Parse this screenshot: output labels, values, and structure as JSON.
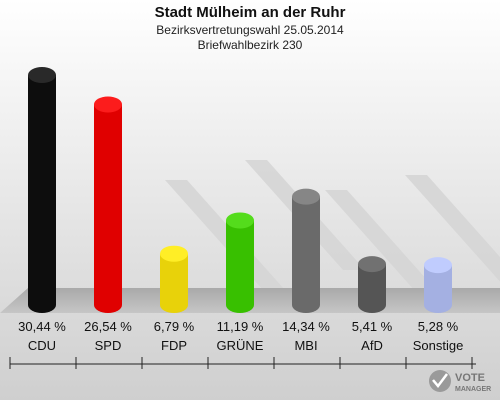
{
  "chart_data": {
    "type": "bar",
    "title": "Stadt Mülheim an der Ruhr",
    "subtitle_1": "Bezirksvertretungswahl 25.05.2014",
    "subtitle_2": "Briefwahlbezirk 230",
    "categories": [
      "CDU",
      "SPD",
      "FDP",
      "GRÜNE",
      "MBI",
      "AfD",
      "Sonstige"
    ],
    "values": [
      30.44,
      26.54,
      6.79,
      11.19,
      14.34,
      5.41,
      5.28
    ],
    "labels": [
      "30,44 %",
      "26,54 %",
      "6,79 %",
      "11,19 %",
      "14,34 %",
      "5,41 %",
      "5,28 %"
    ],
    "colors": [
      "#0d0d0d",
      "#e00000",
      "#e8d20a",
      "#38c000",
      "#6a6a6a",
      "#555555",
      "#a4b0e2"
    ],
    "ylim": [
      0,
      32
    ],
    "grid": false,
    "legend": "none"
  },
  "branding": {
    "line1": "VOTE",
    "line2": "MANAGER"
  }
}
